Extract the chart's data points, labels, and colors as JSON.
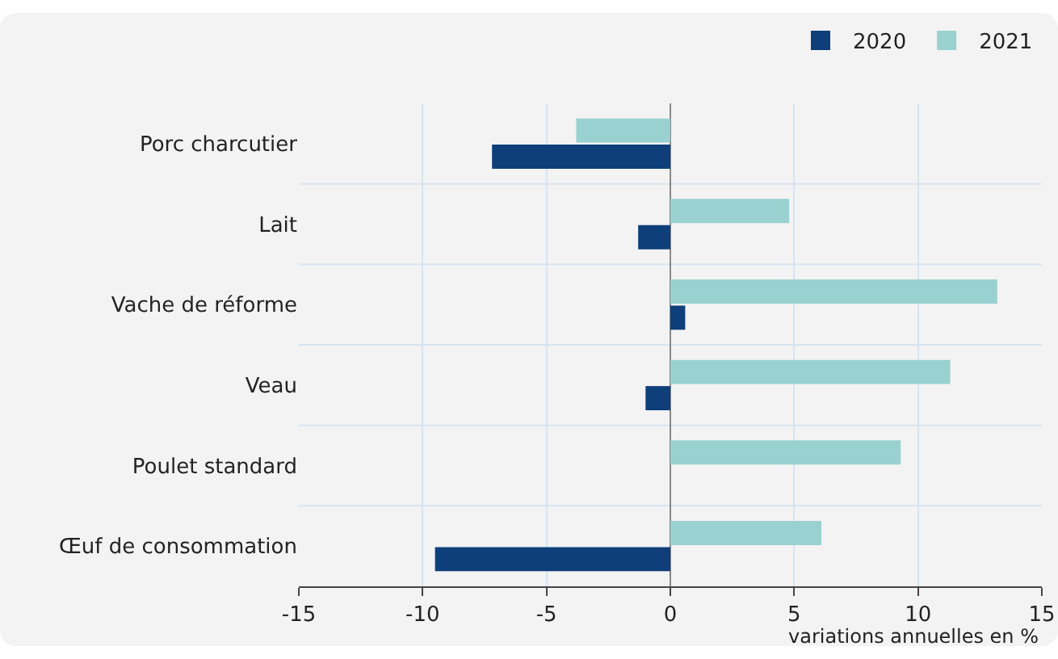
{
  "chart_data": {
    "type": "bar",
    "orientation": "horizontal",
    "xlabel": "variations annuelles en %",
    "categories": [
      "Porc charcutier",
      "Lait",
      "Vache de réforme",
      "Veau",
      "Poulet standard",
      "Œuf de consommation"
    ],
    "series": [
      {
        "name": "2020",
        "color": "#0e3f7a",
        "values": [
          -7.2,
          -1.3,
          0.6,
          -1.0,
          null,
          -9.5
        ]
      },
      {
        "name": "2021",
        "color": "#99d1d0",
        "values": [
          -3.8,
          4.8,
          13.2,
          11.3,
          9.3,
          6.1
        ]
      }
    ],
    "xlim": [
      -15,
      15
    ],
    "xticks": [
      -15,
      -10,
      -5,
      0,
      5,
      10,
      15
    ],
    "grid": true,
    "legend": "top right"
  }
}
